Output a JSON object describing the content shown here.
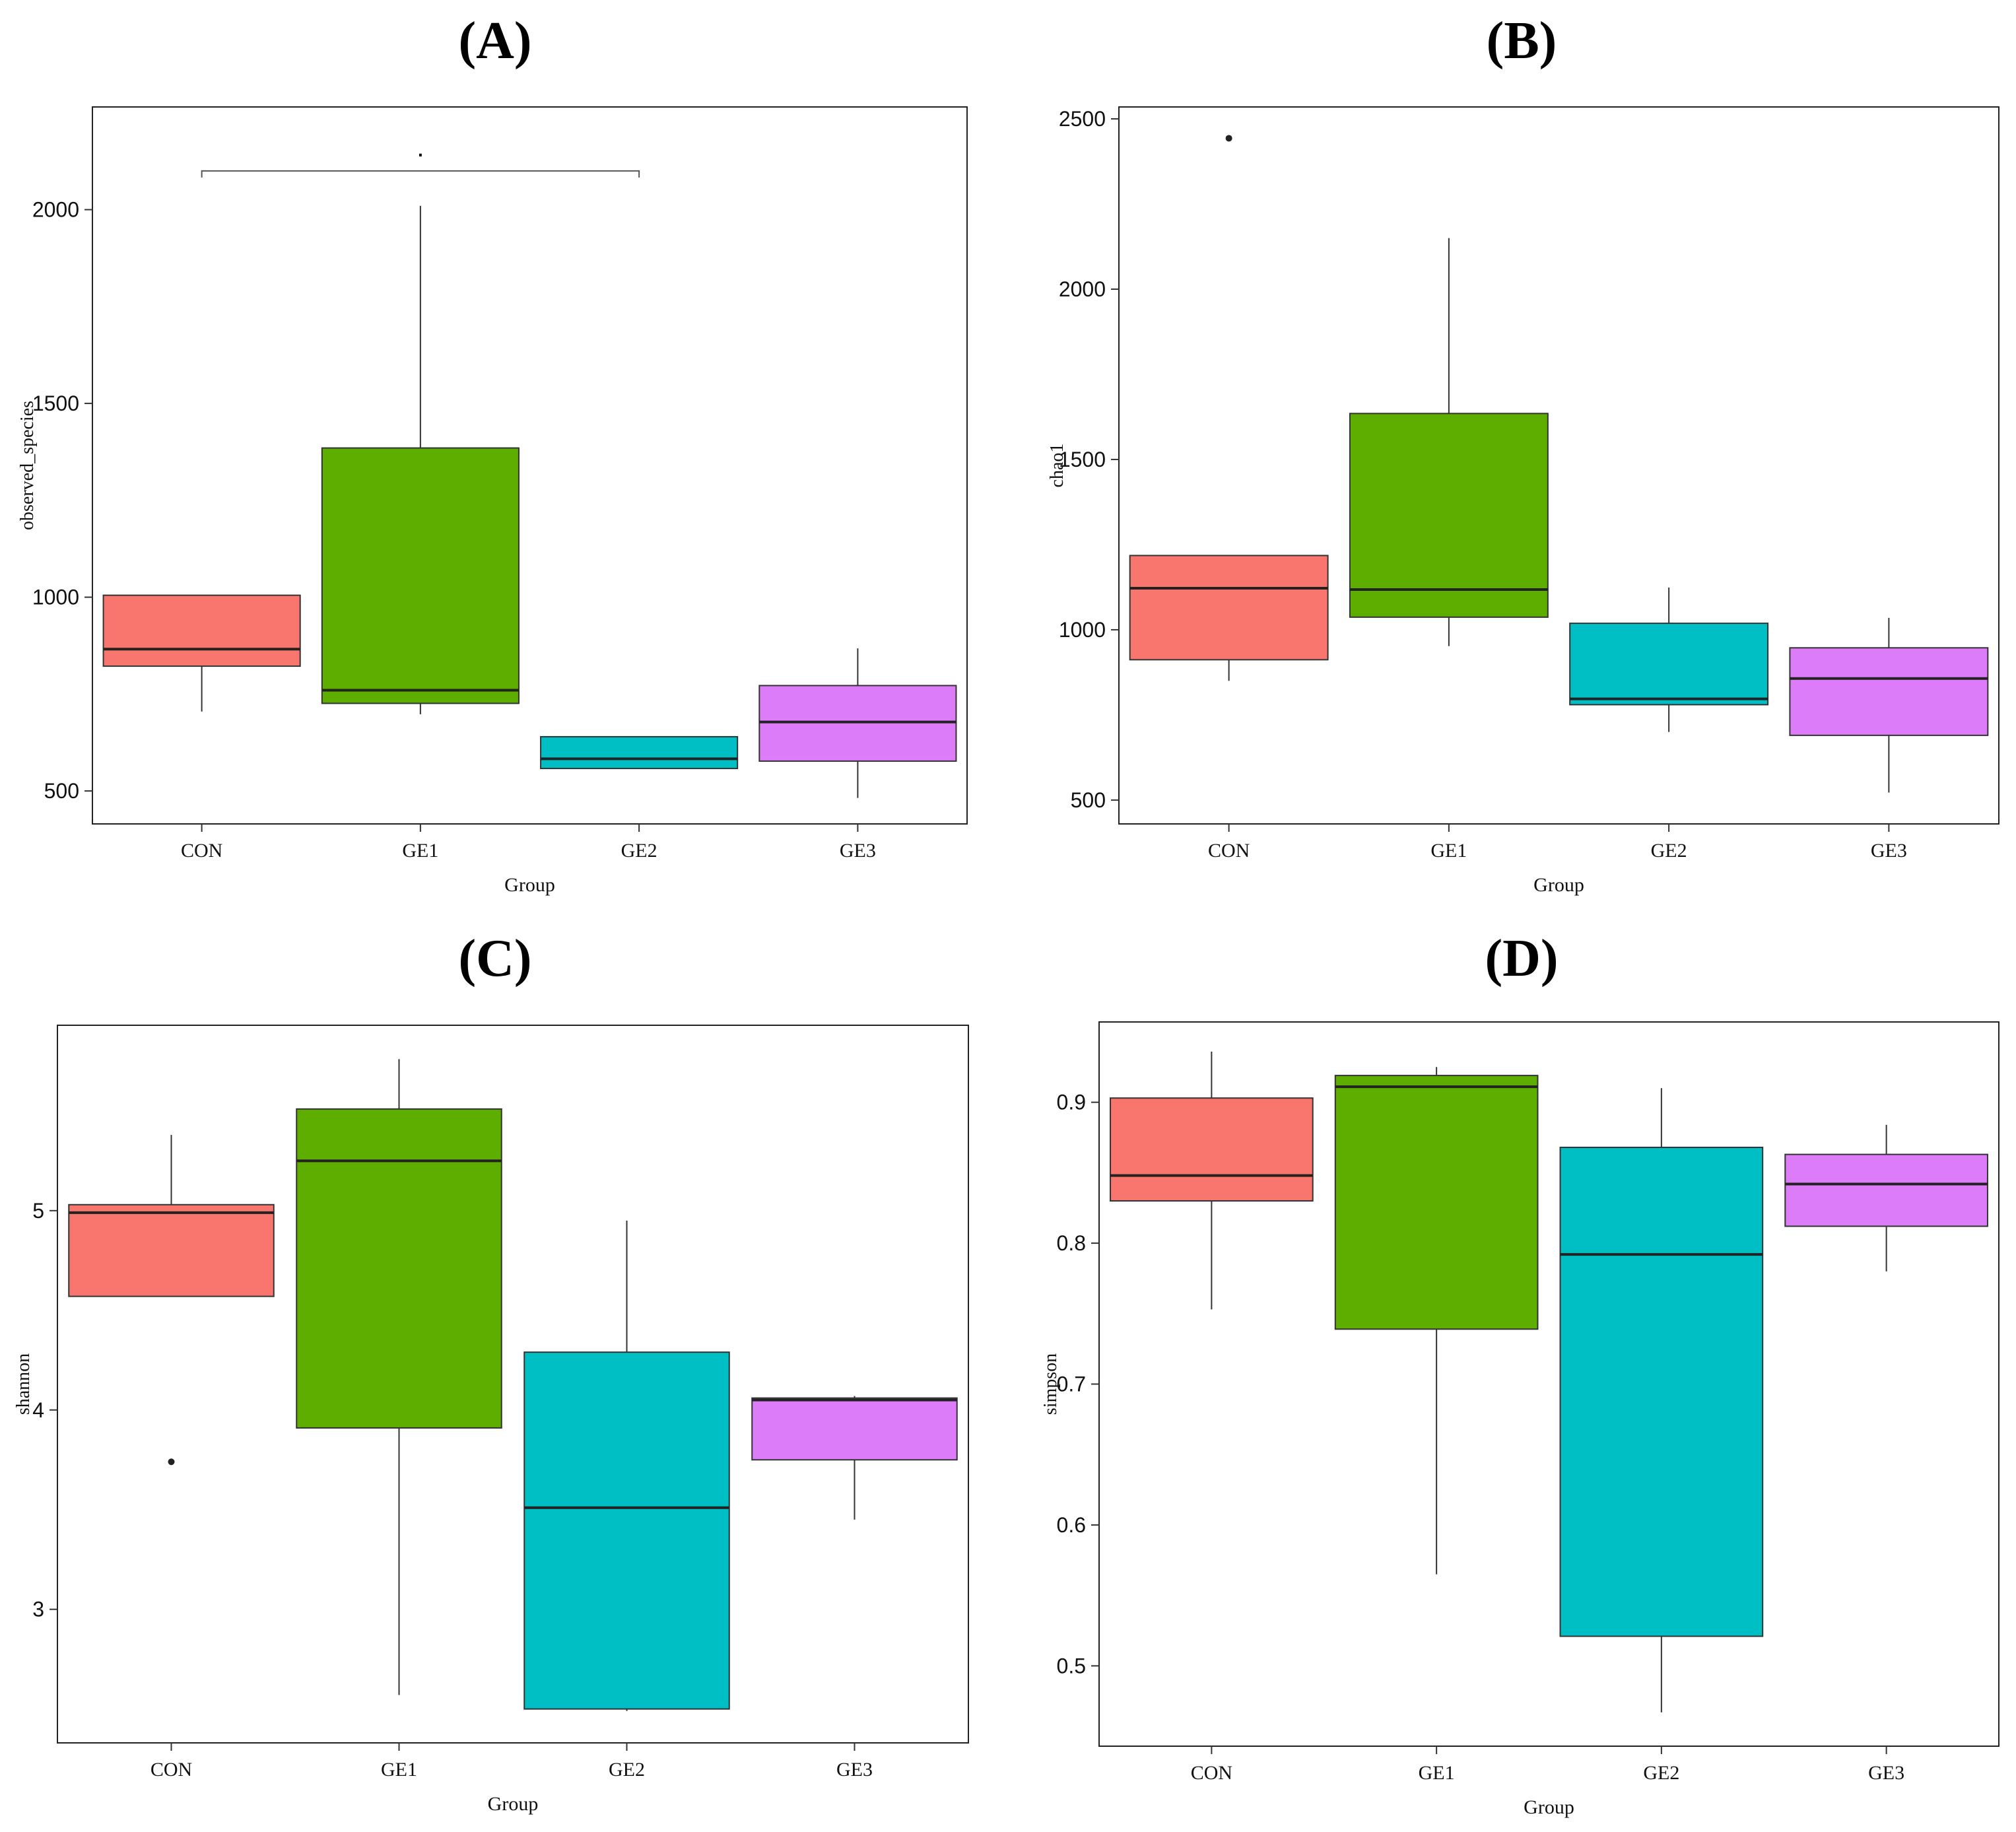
{
  "figure": {
    "background": "#ffffff"
  },
  "chart_data": [
    {
      "type": "box",
      "panel_label": "(A)",
      "xlabel": "Group",
      "ylabel": "observed_species",
      "categories": [
        "CON",
        "GE1",
        "GE2",
        "GE3"
      ],
      "colors": [
        "#F8766D",
        "#5EAE00",
        "#00BFC4",
        "#DC7CF8"
      ],
      "ylim": [
        415,
        2265
      ],
      "yticks": [
        500,
        1000,
        1500,
        2000
      ],
      "ytick_labels": [
        "500",
        "1000",
        "1500",
        "2000"
      ],
      "grid": false,
      "boxes": [
        {
          "whisker_low": 705,
          "q1": 822,
          "median": 866,
          "q3": 1005,
          "whisker_high": 1005,
          "outliers": []
        },
        {
          "whisker_low": 698,
          "q1": 726,
          "median": 760,
          "q3": 1385,
          "whisker_high": 2010,
          "outliers": []
        },
        {
          "whisker_low": 558,
          "q1": 558,
          "median": 583,
          "q3": 640,
          "whisker_high": 640,
          "outliers": []
        },
        {
          "whisker_low": 482,
          "q1": 577,
          "median": 678,
          "q3": 772,
          "whisker_high": 868,
          "outliers": []
        }
      ],
      "significance": [
        {
          "from": "CON",
          "to": "GE2",
          "y": 2100,
          "label": "."
        }
      ]
    },
    {
      "type": "box",
      "panel_label": "(B)",
      "xlabel": "Group",
      "ylabel": "chao1",
      "categories": [
        "CON",
        "GE1",
        "GE2",
        "GE3"
      ],
      "colors": [
        "#F8766D",
        "#5EAE00",
        "#00BFC4",
        "#DC7CF8"
      ],
      "ylim": [
        430,
        2535
      ],
      "yticks": [
        500,
        1000,
        1500,
        2000,
        2500
      ],
      "ytick_labels": [
        "500",
        "1000",
        "1500",
        "2000",
        "2500"
      ],
      "grid": false,
      "boxes": [
        {
          "whisker_low": 850,
          "q1": 912,
          "median": 1122,
          "q3": 1218,
          "whisker_high": 1218,
          "outliers": [
            2443
          ]
        },
        {
          "whisker_low": 952,
          "q1": 1037,
          "median": 1118,
          "q3": 1635,
          "whisker_high": 2150,
          "outliers": []
        },
        {
          "whisker_low": 700,
          "q1": 780,
          "median": 797,
          "q3": 1019,
          "whisker_high": 1124,
          "outliers": []
        },
        {
          "whisker_low": 522,
          "q1": 690,
          "median": 857,
          "q3": 947,
          "whisker_high": 1035,
          "outliers": []
        }
      ],
      "significance": []
    },
    {
      "type": "box",
      "panel_label": "(C)",
      "xlabel": "Group",
      "ylabel": "shannon",
      "categories": [
        "CON",
        "GE1",
        "GE2",
        "GE3"
      ],
      "colors": [
        "#F8766D",
        "#5EAE00",
        "#00BFC4",
        "#DC7CF8"
      ],
      "ylim": [
        2.33,
        5.93
      ],
      "yticks": [
        3,
        4,
        5
      ],
      "ytick_labels": [
        "3",
        "4",
        "5"
      ],
      "grid": false,
      "boxes": [
        {
          "whisker_low": 4.57,
          "q1": 4.57,
          "median": 4.99,
          "q3": 5.03,
          "whisker_high": 5.38,
          "outliers": [
            3.74
          ]
        },
        {
          "whisker_low": 2.57,
          "q1": 3.91,
          "median": 5.25,
          "q3": 5.51,
          "whisker_high": 5.76,
          "outliers": []
        },
        {
          "whisker_low": 2.49,
          "q1": 2.5,
          "median": 3.51,
          "q3": 4.29,
          "whisker_high": 4.95,
          "outliers": []
        },
        {
          "whisker_low": 3.45,
          "q1": 3.75,
          "median": 4.05,
          "q3": 4.06,
          "whisker_high": 4.07,
          "outliers": []
        }
      ],
      "significance": []
    },
    {
      "type": "box",
      "panel_label": "(D)",
      "xlabel": "Group",
      "ylabel": "simpson",
      "categories": [
        "CON",
        "GE1",
        "GE2",
        "GE3"
      ],
      "colors": [
        "#F8766D",
        "#5EAE00",
        "#00BFC4",
        "#DC7CF8"
      ],
      "ylim": [
        0.443,
        0.957
      ],
      "yticks": [
        0.5,
        0.6,
        0.7,
        0.8,
        0.9
      ],
      "ytick_labels": [
        "0.5",
        "0.6",
        "0.7",
        "0.8",
        "0.9"
      ],
      "grid": false,
      "boxes": [
        {
          "whisker_low": 0.753,
          "q1": 0.83,
          "median": 0.848,
          "q3": 0.903,
          "whisker_high": 0.936,
          "outliers": []
        },
        {
          "whisker_low": 0.565,
          "q1": 0.739,
          "median": 0.911,
          "q3": 0.919,
          "whisker_high": 0.925,
          "outliers": []
        },
        {
          "whisker_low": 0.467,
          "q1": 0.521,
          "median": 0.792,
          "q3": 0.868,
          "whisker_high": 0.91,
          "outliers": []
        },
        {
          "whisker_low": 0.78,
          "q1": 0.812,
          "median": 0.842,
          "q3": 0.863,
          "whisker_high": 0.884,
          "outliers": []
        }
      ],
      "significance": []
    }
  ]
}
